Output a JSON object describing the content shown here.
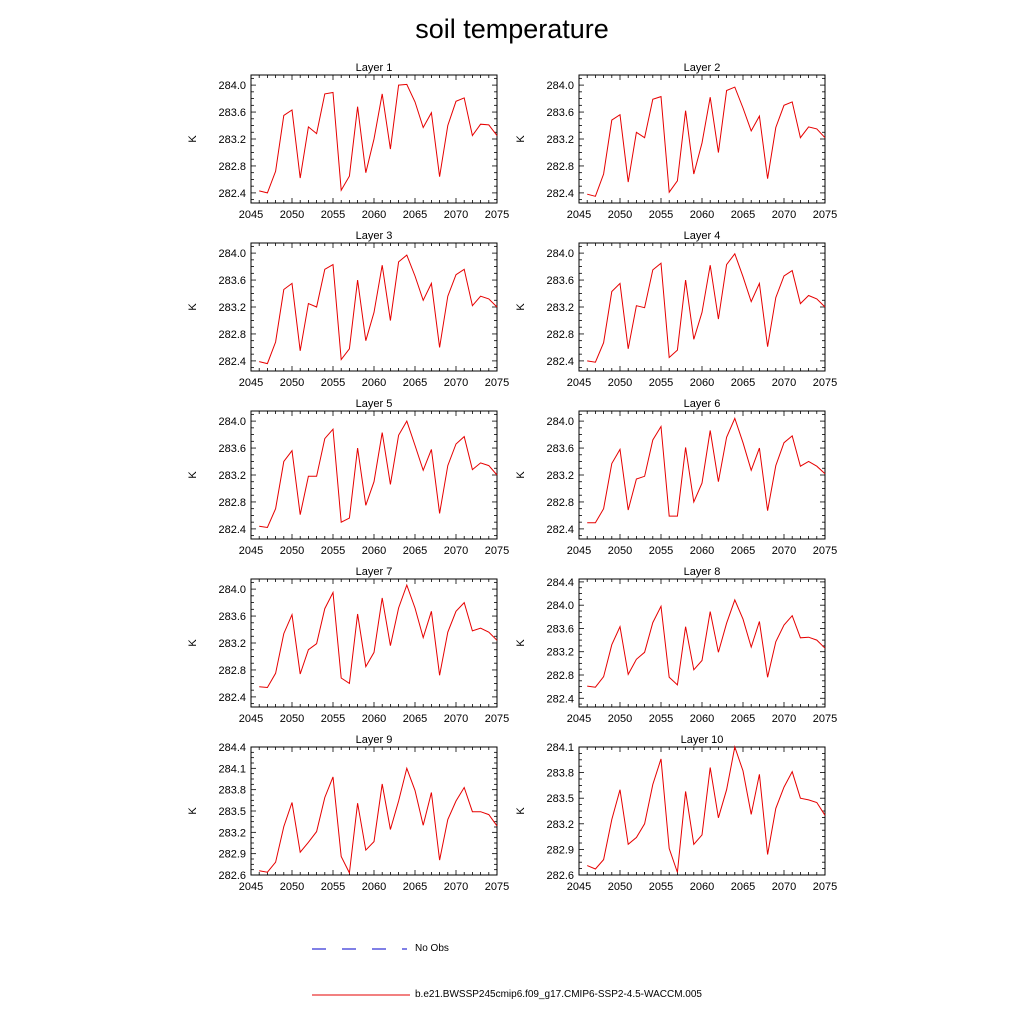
{
  "title": "soil temperature",
  "colors": {
    "model": "#e60000",
    "obs": "#0000cc",
    "axis": "#000000"
  },
  "legend": {
    "obs_label": "No Obs",
    "model_label": "b.e21.BWSSP245cmip6.f09_g17.CMIP6-SSP2-4.5-WACCM.005"
  },
  "chart_data": [
    {
      "type": "line",
      "title": "Layer 1",
      "ylabel": "K",
      "xlim": [
        2045,
        2075
      ],
      "ylim": [
        282.25,
        284.15
      ],
      "xticks": [
        "2045",
        "2050",
        "2055",
        "2060",
        "2065",
        "2070",
        "2075"
      ],
      "yticks": [
        "282.4",
        "282.8",
        "283.2",
        "283.6",
        "284.0"
      ],
      "x": [
        2046,
        2047,
        2048,
        2049,
        2050,
        2051,
        2052,
        2053,
        2054,
        2055,
        2056,
        2057,
        2058,
        2059,
        2060,
        2061,
        2062,
        2063,
        2064,
        2065,
        2066,
        2067,
        2068,
        2069,
        2070,
        2071,
        2072,
        2073,
        2074,
        2075
      ],
      "values": [
        282.43,
        282.4,
        282.72,
        283.55,
        283.63,
        282.62,
        283.38,
        283.28,
        283.87,
        283.89,
        282.44,
        282.65,
        283.68,
        282.7,
        283.2,
        283.87,
        283.05,
        284.0,
        284.01,
        283.75,
        283.37,
        283.59,
        282.64,
        283.4,
        283.76,
        283.81,
        283.25,
        283.42,
        283.41,
        283.25
      ]
    },
    {
      "type": "line",
      "title": "Layer 2",
      "ylabel": "K",
      "xlim": [
        2045,
        2075
      ],
      "ylim": [
        282.25,
        284.15
      ],
      "xticks": [
        "2045",
        "2050",
        "2055",
        "2060",
        "2065",
        "2070",
        "2075"
      ],
      "yticks": [
        "282.4",
        "282.8",
        "283.2",
        "283.6",
        "284.0"
      ],
      "x": [
        2046,
        2047,
        2048,
        2049,
        2050,
        2051,
        2052,
        2053,
        2054,
        2055,
        2056,
        2057,
        2058,
        2059,
        2060,
        2061,
        2062,
        2063,
        2064,
        2065,
        2066,
        2067,
        2068,
        2069,
        2070,
        2071,
        2072,
        2073,
        2074,
        2075
      ],
      "values": [
        282.38,
        282.35,
        282.68,
        283.48,
        283.56,
        282.56,
        283.3,
        283.22,
        283.79,
        283.83,
        282.41,
        282.58,
        283.62,
        282.68,
        283.14,
        283.82,
        283.0,
        283.92,
        283.97,
        283.66,
        283.32,
        283.54,
        282.61,
        283.37,
        283.7,
        283.75,
        283.22,
        283.38,
        283.35,
        283.22
      ]
    },
    {
      "type": "line",
      "title": "Layer 3",
      "ylabel": "K",
      "xlim": [
        2045,
        2075
      ],
      "ylim": [
        282.25,
        284.15
      ],
      "xticks": [
        "2045",
        "2050",
        "2055",
        "2060",
        "2065",
        "2070",
        "2075"
      ],
      "yticks": [
        "282.4",
        "282.8",
        "283.2",
        "283.6",
        "284.0"
      ],
      "x": [
        2046,
        2047,
        2048,
        2049,
        2050,
        2051,
        2052,
        2053,
        2054,
        2055,
        2056,
        2057,
        2058,
        2059,
        2060,
        2061,
        2062,
        2063,
        2064,
        2065,
        2066,
        2067,
        2068,
        2069,
        2070,
        2071,
        2072,
        2073,
        2074,
        2075
      ],
      "values": [
        282.39,
        282.36,
        282.68,
        283.46,
        283.55,
        282.55,
        283.25,
        283.2,
        283.76,
        283.83,
        282.42,
        282.58,
        283.6,
        282.7,
        283.12,
        283.82,
        283.0,
        283.87,
        283.97,
        283.66,
        283.3,
        283.55,
        282.6,
        283.36,
        283.68,
        283.76,
        283.22,
        283.36,
        283.32,
        283.2
      ]
    },
    {
      "type": "line",
      "title": "Layer 4",
      "ylabel": "K",
      "xlim": [
        2045,
        2075
      ],
      "ylim": [
        282.25,
        284.15
      ],
      "xticks": [
        "2045",
        "2050",
        "2055",
        "2060",
        "2065",
        "2070",
        "2075"
      ],
      "yticks": [
        "282.4",
        "282.8",
        "283.2",
        "283.6",
        "284.0"
      ],
      "x": [
        2046,
        2047,
        2048,
        2049,
        2050,
        2051,
        2052,
        2053,
        2054,
        2055,
        2056,
        2057,
        2058,
        2059,
        2060,
        2061,
        2062,
        2063,
        2064,
        2065,
        2066,
        2067,
        2068,
        2069,
        2070,
        2071,
        2072,
        2073,
        2074,
        2075
      ],
      "values": [
        282.4,
        282.38,
        282.67,
        283.43,
        283.55,
        282.58,
        283.22,
        283.19,
        283.75,
        283.85,
        282.45,
        282.56,
        283.6,
        282.72,
        283.12,
        283.82,
        283.02,
        283.83,
        283.99,
        283.65,
        283.28,
        283.55,
        282.61,
        283.34,
        283.66,
        283.74,
        283.25,
        283.37,
        283.32,
        283.2
      ]
    },
    {
      "type": "line",
      "title": "Layer 5",
      "ylabel": "K",
      "xlim": [
        2045,
        2075
      ],
      "ylim": [
        282.25,
        284.15
      ],
      "xticks": [
        "2045",
        "2050",
        "2055",
        "2060",
        "2065",
        "2070",
        "2075"
      ],
      "yticks": [
        "282.4",
        "282.8",
        "283.2",
        "283.6",
        "284.0"
      ],
      "x": [
        2046,
        2047,
        2048,
        2049,
        2050,
        2051,
        2052,
        2053,
        2054,
        2055,
        2056,
        2057,
        2058,
        2059,
        2060,
        2061,
        2062,
        2063,
        2064,
        2065,
        2066,
        2067,
        2068,
        2069,
        2070,
        2071,
        2072,
        2073,
        2074,
        2075
      ],
      "values": [
        282.44,
        282.42,
        282.7,
        283.4,
        283.56,
        282.61,
        283.18,
        283.18,
        283.74,
        283.88,
        282.5,
        282.56,
        283.6,
        282.75,
        283.1,
        283.83,
        283.06,
        283.79,
        284.0,
        283.64,
        283.27,
        283.58,
        282.63,
        283.34,
        283.66,
        283.77,
        283.28,
        283.38,
        283.34,
        283.2
      ]
    },
    {
      "type": "line",
      "title": "Layer 6",
      "ylabel": "K",
      "xlim": [
        2045,
        2075
      ],
      "ylim": [
        282.25,
        284.15
      ],
      "xticks": [
        "2045",
        "2050",
        "2055",
        "2060",
        "2065",
        "2070",
        "2075"
      ],
      "yticks": [
        "282.4",
        "282.8",
        "283.2",
        "283.6",
        "284.0"
      ],
      "x": [
        2046,
        2047,
        2048,
        2049,
        2050,
        2051,
        2052,
        2053,
        2054,
        2055,
        2056,
        2057,
        2058,
        2059,
        2060,
        2061,
        2062,
        2063,
        2064,
        2065,
        2066,
        2067,
        2068,
        2069,
        2070,
        2071,
        2072,
        2073,
        2074,
        2075
      ],
      "values": [
        282.49,
        282.49,
        282.7,
        283.37,
        283.58,
        282.68,
        283.14,
        283.18,
        283.72,
        283.92,
        282.59,
        282.59,
        283.61,
        282.8,
        283.08,
        283.86,
        283.1,
        283.76,
        284.04,
        283.68,
        283.27,
        283.6,
        282.67,
        283.34,
        283.68,
        283.78,
        283.33,
        283.4,
        283.33,
        283.22
      ]
    },
    {
      "type": "line",
      "title": "Layer 7",
      "ylabel": "K",
      "xlim": [
        2045,
        2075
      ],
      "ylim": [
        282.25,
        284.15
      ],
      "xticks": [
        "2045",
        "2050",
        "2055",
        "2060",
        "2065",
        "2070",
        "2075"
      ],
      "yticks": [
        "282.4",
        "282.8",
        "283.2",
        "283.6",
        "284.0"
      ],
      "x": [
        2046,
        2047,
        2048,
        2049,
        2050,
        2051,
        2052,
        2053,
        2054,
        2055,
        2056,
        2057,
        2058,
        2059,
        2060,
        2061,
        2062,
        2063,
        2064,
        2065,
        2066,
        2067,
        2068,
        2069,
        2070,
        2071,
        2072,
        2073,
        2074,
        2075
      ],
      "values": [
        282.55,
        282.54,
        282.75,
        283.34,
        283.62,
        282.74,
        283.1,
        283.19,
        283.71,
        283.95,
        282.68,
        282.6,
        283.63,
        282.85,
        283.06,
        283.87,
        283.16,
        283.72,
        284.06,
        283.72,
        283.28,
        283.67,
        282.72,
        283.36,
        283.67,
        283.8,
        283.38,
        283.42,
        283.36,
        283.24
      ]
    },
    {
      "type": "line",
      "title": "Layer 8",
      "ylabel": "K",
      "xlim": [
        2045,
        2075
      ],
      "ylim": [
        282.25,
        284.45
      ],
      "xticks": [
        "2045",
        "2050",
        "2055",
        "2060",
        "2065",
        "2070",
        "2075"
      ],
      "yticks": [
        "282.4",
        "282.8",
        "283.2",
        "283.6",
        "284.0",
        "284.4"
      ],
      "x": [
        2046,
        2047,
        2048,
        2049,
        2050,
        2051,
        2052,
        2053,
        2054,
        2055,
        2056,
        2057,
        2058,
        2059,
        2060,
        2061,
        2062,
        2063,
        2064,
        2065,
        2066,
        2067,
        2068,
        2069,
        2070,
        2071,
        2072,
        2073,
        2074,
        2075
      ],
      "values": [
        282.61,
        282.59,
        282.77,
        283.32,
        283.63,
        282.81,
        283.07,
        283.19,
        283.7,
        283.98,
        282.76,
        282.63,
        283.63,
        282.89,
        283.05,
        283.89,
        283.19,
        283.69,
        284.09,
        283.76,
        283.28,
        283.72,
        282.76,
        283.37,
        283.66,
        283.82,
        283.44,
        283.45,
        283.4,
        283.26
      ]
    },
    {
      "type": "line",
      "title": "Layer 9",
      "ylabel": "K",
      "xlim": [
        2045,
        2075
      ],
      "ylim": [
        282.6,
        284.4
      ],
      "xticks": [
        "2045",
        "2050",
        "2055",
        "2060",
        "2065",
        "2070",
        "2075"
      ],
      "yticks": [
        "282.6",
        "282.9",
        "283.2",
        "283.5",
        "283.8",
        "284.1",
        "284.4"
      ],
      "x": [
        2046,
        2047,
        2048,
        2049,
        2050,
        2051,
        2052,
        2053,
        2054,
        2055,
        2056,
        2057,
        2058,
        2059,
        2060,
        2061,
        2062,
        2063,
        2064,
        2065,
        2066,
        2067,
        2068,
        2069,
        2070,
        2071,
        2072,
        2073,
        2074,
        2075
      ],
      "values": [
        282.66,
        282.64,
        282.78,
        283.28,
        283.62,
        282.92,
        283.06,
        283.21,
        283.69,
        283.98,
        282.86,
        282.63,
        283.61,
        282.95,
        283.07,
        283.88,
        283.24,
        283.64,
        284.1,
        283.79,
        283.3,
        283.76,
        282.81,
        283.38,
        283.64,
        283.83,
        283.49,
        283.49,
        283.45,
        283.29
      ]
    },
    {
      "type": "line",
      "title": "Layer 10",
      "ylabel": "K",
      "xlim": [
        2045,
        2075
      ],
      "ylim": [
        282.6,
        284.1
      ],
      "xticks": [
        "2045",
        "2050",
        "2055",
        "2060",
        "2065",
        "2070",
        "2075"
      ],
      "yticks": [
        "282.6",
        "282.9",
        "283.2",
        "283.5",
        "283.8",
        "284.1"
      ],
      "x": [
        2046,
        2047,
        2048,
        2049,
        2050,
        2051,
        2052,
        2053,
        2054,
        2055,
        2056,
        2057,
        2058,
        2059,
        2060,
        2061,
        2062,
        2063,
        2064,
        2065,
        2066,
        2067,
        2068,
        2069,
        2070,
        2071,
        2072,
        2073,
        2074,
        2075
      ],
      "values": [
        282.71,
        282.67,
        282.78,
        283.25,
        283.6,
        282.96,
        283.04,
        283.2,
        283.66,
        283.96,
        282.91,
        282.63,
        283.58,
        282.96,
        283.07,
        283.86,
        283.27,
        283.6,
        284.1,
        283.82,
        283.31,
        283.78,
        282.84,
        283.38,
        283.63,
        283.81,
        283.5,
        283.48,
        283.45,
        283.3
      ]
    }
  ]
}
